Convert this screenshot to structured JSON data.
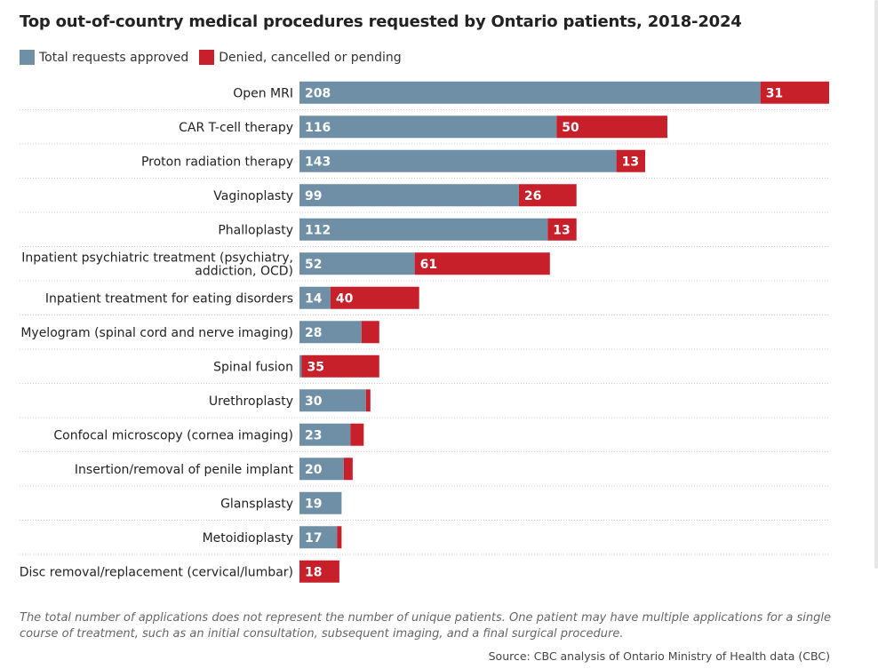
{
  "title": "Top out-of-country medical procedures requested by Ontario patients, 2018-2024",
  "legend": {
    "approved": "Total requests approved",
    "denied": "Denied, cancelled or pending"
  },
  "colors": {
    "approved": "#6f8fa6",
    "denied": "#c7202a",
    "gridline": "#cccccc",
    "label_text": "#ffffff"
  },
  "chart_data": {
    "type": "bar",
    "orientation": "horizontal",
    "stacked": true,
    "title": "Top out-of-country medical procedures requested by Ontario patients, 2018-2024",
    "categories": [
      "Open MRI",
      "CAR T-cell therapy",
      "Proton radiation therapy",
      "Vaginoplasty",
      "Phalloplasty",
      "Inpatient psychiatric treatment (psychiatry, addiction, OCD)",
      "Inpatient treatment for eating disorders",
      "Myelogram (spinal cord and nerve imaging)",
      "Spinal fusion",
      "Urethroplasty",
      "Confocal microscopy (cornea imaging)",
      "Insertion/removal of penile implant",
      "Glansplasty",
      "Metoidioplasty",
      "Disc removal/replacement (cervical/lumbar)"
    ],
    "category_lines": [
      [
        "Open MRI"
      ],
      [
        "CAR T-cell therapy"
      ],
      [
        "Proton radiation therapy"
      ],
      [
        "Vaginoplasty"
      ],
      [
        "Phalloplasty"
      ],
      [
        "Inpatient psychiatric treatment (psychiatry,",
        "addiction, OCD)"
      ],
      [
        "Inpatient treatment for eating disorders"
      ],
      [
        "Myelogram (spinal cord and nerve imaging)"
      ],
      [
        "Spinal fusion"
      ],
      [
        "Urethroplasty"
      ],
      [
        "Confocal microscopy (cornea imaging)"
      ],
      [
        "Insertion/removal of penile implant"
      ],
      [
        "Glansplasty"
      ],
      [
        "Metoidioplasty"
      ],
      [
        "Disc removal/replacement (cervical/lumbar)"
      ]
    ],
    "series": [
      {
        "name": "Total requests approved",
        "values": [
          208,
          116,
          143,
          99,
          112,
          52,
          14,
          28,
          1,
          30,
          23,
          20,
          19,
          17,
          0
        ]
      },
      {
        "name": "Denied, cancelled or pending",
        "values": [
          31,
          50,
          13,
          26,
          13,
          61,
          40,
          8,
          35,
          2,
          6,
          4,
          0,
          2,
          18
        ]
      }
    ],
    "data_labels": [
      [
        "208",
        "116",
        "143",
        "99",
        "112",
        "52",
        "14",
        "28",
        "",
        "30",
        "23",
        "20",
        "19",
        "17",
        ""
      ],
      [
        "31",
        "50",
        "13",
        "26",
        "13",
        "61",
        "40",
        "",
        "35",
        "",
        "",
        "",
        "",
        "",
        "18"
      ]
    ],
    "xlim": [
      0,
      239
    ],
    "legend_position": "top-left"
  },
  "footnote": "The total number of applications does not represent the number of unique patients. One patient may have multiple applications for a single course of treatment, such as an initial consultation, subsequent imaging, and a final surgical procedure.",
  "source": "Source: CBC analysis of Ontario Ministry of Health data (CBC)"
}
